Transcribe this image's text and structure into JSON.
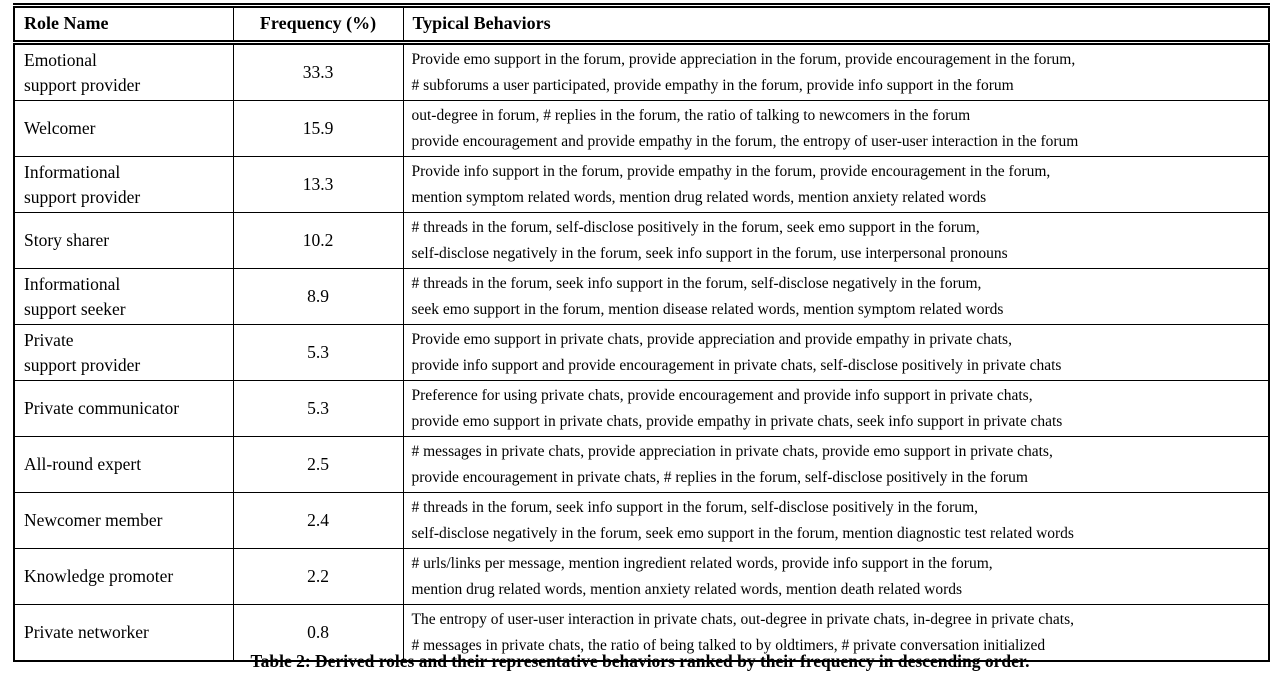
{
  "document": {
    "caption": "Table 2: Derived roles and their representative behaviors ranked by their frequency in descending order."
  },
  "table": {
    "headers": [
      "Role Name",
      "Frequency (%)",
      "Typical Behaviors"
    ],
    "colors": {
      "text": "#000000",
      "border": "#000000",
      "background": "#ffffff"
    },
    "rows": [
      {
        "role_lines": [
          "Emotional",
          "support provider"
        ],
        "frequency": "33.3",
        "behavior_lines": [
          "Provide emo support in the forum, provide appreciation in the forum, provide encouragement in the forum,",
          "# subforums a user participated, provide empathy in the forum, provide info support in the forum"
        ]
      },
      {
        "role_lines": [
          "Welcomer"
        ],
        "frequency": "15.9",
        "behavior_lines": [
          "out-degree in forum, # replies in the forum, the ratio of talking to newcomers in the forum",
          "provide encouragement and provide empathy in the forum, the entropy of user-user interaction in the forum"
        ]
      },
      {
        "role_lines": [
          "Informational",
          "support provider"
        ],
        "frequency": "13.3",
        "behavior_lines": [
          "Provide info support in the forum, provide empathy in the forum, provide encouragement in the forum,",
          "mention symptom related words, mention drug related words, mention anxiety related words"
        ]
      },
      {
        "role_lines": [
          "Story sharer"
        ],
        "frequency": "10.2",
        "behavior_lines": [
          "# threads in the forum, self-disclose positively in the forum, seek emo support in the forum,",
          "self-disclose negatively in the forum, seek info support in the forum, use interpersonal pronouns"
        ]
      },
      {
        "role_lines": [
          "Informational",
          "support seeker"
        ],
        "frequency": "8.9",
        "behavior_lines": [
          "# threads in the forum, seek info support in the forum, self-disclose negatively in the forum,",
          "seek emo support in the forum, mention disease related words, mention symptom related words"
        ]
      },
      {
        "role_lines": [
          "Private",
          "support provider"
        ],
        "frequency": "5.3",
        "behavior_lines": [
          "Provide emo support in private chats, provide appreciation and provide empathy in private chats,",
          "provide info support and provide encouragement in private chats, self-disclose positively in private chats"
        ]
      },
      {
        "role_lines": [
          "Private communicator"
        ],
        "frequency": "5.3",
        "behavior_lines": [
          "Preference for using private chats, provide encouragement and provide info support in private chats,",
          "provide emo support in private chats, provide empathy in private chats, seek info support in private chats"
        ]
      },
      {
        "role_lines": [
          "All-round expert"
        ],
        "frequency": "2.5",
        "behavior_lines": [
          "# messages in private chats, provide appreciation in private chats, provide emo support in private chats,",
          "provide encouragement in private chats, # replies in the forum, self-disclose positively in the forum"
        ]
      },
      {
        "role_lines": [
          "Newcomer member"
        ],
        "frequency": "2.4",
        "behavior_lines": [
          "# threads in the forum, seek info support in the forum, self-disclose positively in the forum,",
          "self-disclose negatively in the forum, seek emo support in the forum, mention diagnostic test related words"
        ]
      },
      {
        "role_lines": [
          "Knowledge promoter"
        ],
        "frequency": "2.2",
        "behavior_lines": [
          "# urls/links per message, mention ingredient related words, provide info support in the forum,",
          "mention drug related words, mention anxiety related words, mention death related words"
        ]
      },
      {
        "role_lines": [
          "Private networker"
        ],
        "frequency": "0.8",
        "behavior_lines": [
          "The entropy of user-user interaction in private chats, out-degree in private chats, in-degree in private chats,",
          "# messages in private chats, the ratio of being talked to by oldtimers, # private conversation initialized"
        ]
      }
    ]
  }
}
